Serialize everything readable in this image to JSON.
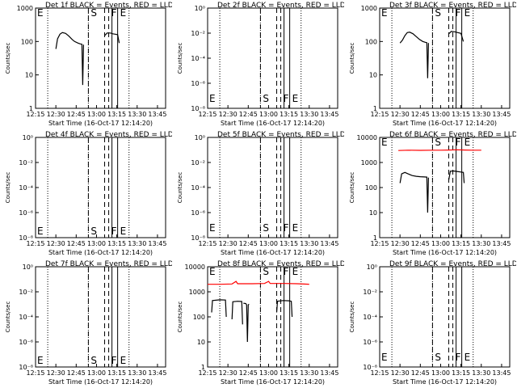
{
  "x_ticks": [
    "12:15",
    "12:30",
    "12:45",
    "13:00",
    "13:15",
    "13:30",
    "13:45"
  ],
  "xlabel": "Start Time (16-Oct-17 12:14:20)",
  "ylabel": "Counts/sec",
  "markers": {
    "e_left": "E",
    "s": "S",
    "f": "F",
    "e_right": "E"
  },
  "chart_data": [
    {
      "type": "line",
      "title": "Det 1f BLACK = Events, RED = LLD",
      "ylim": [
        1,
        1000
      ],
      "y_scale": "log",
      "y_ticks": [
        "1",
        "10",
        "100",
        "1000"
      ],
      "series": [
        {
          "color": "#000000",
          "points": [
            [
              12.5,
              60
            ],
            [
              12.52,
              120
            ],
            [
              12.55,
              165
            ],
            [
              12.58,
              185
            ],
            [
              12.62,
              175
            ],
            [
              12.66,
              145
            ],
            [
              12.7,
              115
            ],
            [
              12.73,
              100
            ],
            [
              12.77,
              90
            ],
            [
              12.8,
              85
            ],
            [
              12.82,
              83
            ],
            [
              12.83,
              5
            ],
            [
              12.84,
              80
            ]
          ]
        },
        {
          "color": "#000000",
          "points": [
            [
              13.1,
              150
            ],
            [
              13.13,
              180
            ],
            [
              13.17,
              180
            ],
            [
              13.2,
              170
            ],
            [
              13.23,
              165
            ],
            [
              13.26,
              160
            ],
            [
              13.28,
              90
            ]
          ]
        }
      ]
    },
    {
      "type": "line",
      "title": "Det 2f BLACK = Events, RED = LLD",
      "ylim": [
        1e-08,
        1
      ],
      "y_scale": "log",
      "y_ticks": [
        "10⁻⁸",
        "10⁻⁶",
        "10⁻⁴",
        "10⁻²",
        "10⁰"
      ],
      "series": []
    },
    {
      "type": "line",
      "title": "Det 3f BLACK = Events, RED = LLD",
      "ylim": [
        1,
        1000
      ],
      "y_scale": "log",
      "y_ticks": [
        "1",
        "10",
        "100",
        "1000"
      ],
      "series": [
        {
          "color": "#000000",
          "points": [
            [
              12.5,
              90
            ],
            [
              12.53,
              110
            ],
            [
              12.56,
              150
            ],
            [
              12.59,
              185
            ],
            [
              12.62,
              190
            ],
            [
              12.66,
              170
            ],
            [
              12.7,
              140
            ],
            [
              12.74,
              115
            ],
            [
              12.78,
              100
            ],
            [
              12.81,
              95
            ],
            [
              12.83,
              92
            ],
            [
              12.84,
              8
            ],
            [
              12.85,
              90
            ]
          ]
        },
        {
          "color": "#000000",
          "points": [
            [
              13.1,
              170
            ],
            [
              13.13,
              200
            ],
            [
              13.17,
              195
            ],
            [
              13.21,
              185
            ],
            [
              13.25,
              175
            ],
            [
              13.28,
              100
            ]
          ]
        }
      ]
    },
    {
      "type": "line",
      "title": "Det 4f BLACK = Events, RED = LLD",
      "ylim": [
        1e-08,
        1
      ],
      "y_scale": "log",
      "y_ticks": [
        "10⁻⁸",
        "10⁻⁶",
        "10⁻⁴",
        "10⁻²",
        "10⁰"
      ],
      "series": []
    },
    {
      "type": "line",
      "title": "Det 5f BLACK = Events, RED = LLD",
      "ylim": [
        1e-08,
        1
      ],
      "y_scale": "log",
      "y_ticks": [
        "10⁻⁸",
        "10⁻⁶",
        "10⁻⁴",
        "10⁻²",
        "10⁰"
      ],
      "series": []
    },
    {
      "type": "line",
      "title": "Det 6f BLACK = Events, RED = LLD",
      "ylim": [
        1,
        10000
      ],
      "y_scale": "log",
      "y_ticks": [
        "1",
        "10",
        "100",
        "1000",
        "10000"
      ],
      "series": [
        {
          "color": "#ff0000",
          "points": [
            [
              12.48,
              3000
            ],
            [
              12.6,
              3100
            ],
            [
              12.75,
              3050
            ],
            [
              12.9,
              3100
            ],
            [
              13.0,
              3100
            ],
            [
              13.1,
              3150
            ],
            [
              13.2,
              3200
            ],
            [
              13.3,
              3150
            ],
            [
              13.4,
              3100
            ],
            [
              13.5,
              3100
            ]
          ]
        },
        {
          "color": "#000000",
          "points": [
            [
              12.5,
              150
            ],
            [
              12.52,
              350
            ],
            [
              12.56,
              400
            ],
            [
              12.6,
              350
            ],
            [
              12.65,
              300
            ],
            [
              12.7,
              280
            ],
            [
              12.75,
              270
            ],
            [
              12.8,
              265
            ],
            [
              12.83,
              260
            ],
            [
              12.84,
              10
            ],
            [
              12.85,
              250
            ]
          ]
        },
        {
          "color": "#000000",
          "points": [
            [
              13.1,
              200
            ],
            [
              13.12,
              450
            ],
            [
              13.16,
              460
            ],
            [
              13.2,
              440
            ],
            [
              13.24,
              420
            ],
            [
              13.28,
              400
            ],
            [
              13.29,
              150
            ]
          ]
        }
      ]
    },
    {
      "type": "line",
      "title": "Det 7f BLACK = Events, RED = LLD",
      "ylim": [
        1e-08,
        1
      ],
      "y_scale": "log",
      "y_ticks": [
        "10⁻⁸",
        "10⁻⁶",
        "10⁻⁴",
        "10⁻²",
        "10⁰"
      ],
      "series": []
    },
    {
      "type": "line",
      "title": "Det 8f BLACK = Events, RED = LLD",
      "ylim": [
        1,
        10000
      ],
      "y_scale": "log",
      "y_ticks": [
        "1",
        "10",
        "100",
        "1000",
        "10000"
      ],
      "series": [
        {
          "color": "#ff0000",
          "points": [
            [
              12.25,
              2000
            ],
            [
              12.4,
              2000
            ],
            [
              12.55,
              2050
            ],
            [
              12.6,
              2600
            ],
            [
              12.62,
              2100
            ],
            [
              12.8,
              2100
            ],
            [
              12.95,
              2150
            ],
            [
              13.0,
              2600
            ],
            [
              13.02,
              2150
            ],
            [
              13.2,
              2150
            ],
            [
              13.35,
              2100
            ],
            [
              13.5,
              2000
            ]
          ]
        },
        {
          "color": "#000000",
          "points": [
            [
              12.3,
              150
            ],
            [
              12.31,
              450
            ],
            [
              12.4,
              480
            ],
            [
              12.47,
              470
            ],
            [
              12.48,
              100
            ]
          ]
        },
        {
          "color": "#000000",
          "points": [
            [
              12.55,
              80
            ],
            [
              12.56,
              400
            ],
            [
              12.62,
              420
            ],
            [
              12.67,
              410
            ],
            [
              12.68,
              50
            ]
          ]
        },
        {
          "color": "#000000",
          "points": [
            [
              12.69,
              350
            ],
            [
              12.72,
              340
            ],
            [
              12.73,
              300
            ],
            [
              12.74,
              10
            ],
            [
              12.75,
              300
            ],
            [
              12.76,
              320
            ]
          ]
        },
        {
          "color": "#000000",
          "points": [
            [
              13.1,
              150
            ],
            [
              13.11,
              420
            ],
            [
              13.18,
              450
            ],
            [
              13.25,
              440
            ],
            [
              13.28,
              420
            ],
            [
              13.29,
              100
            ]
          ]
        }
      ]
    },
    {
      "type": "line",
      "title": "Det 9f BLACK = Events, RED = LLD",
      "ylim": [
        1e-08,
        1
      ],
      "y_scale": "log",
      "y_ticks": [
        "10⁻⁸",
        "10⁻⁶",
        "10⁻⁴",
        "10⁻²",
        "10⁰"
      ],
      "series": []
    }
  ],
  "lines": {
    "dotted": [
      12.4,
      12.9,
      13.4
    ],
    "dashed": [
      12.9,
      13.1,
      13.15
    ],
    "solid": [
      13.19,
      13.26
    ],
    "labels": {
      "e_left": 12.27,
      "s": 12.93,
      "f": 13.18,
      "e_right": 13.29
    }
  }
}
